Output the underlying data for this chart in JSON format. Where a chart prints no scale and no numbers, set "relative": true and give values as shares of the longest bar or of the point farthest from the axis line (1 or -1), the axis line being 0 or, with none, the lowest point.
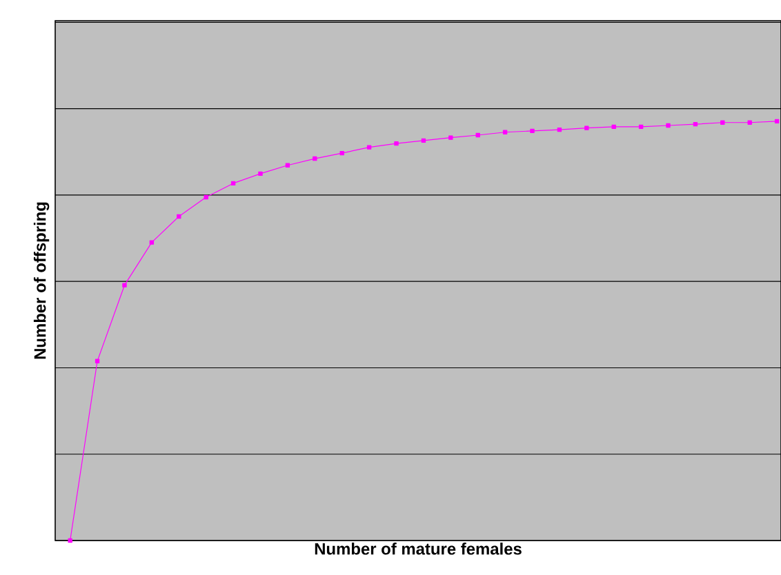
{
  "chart_data": {
    "type": "line",
    "xlabel": "Number of mature females",
    "ylabel": "Number of offspring",
    "relative": true,
    "grid": "y",
    "marker": "square",
    "line_style": "solid",
    "categories": [
      null,
      null,
      null,
      null,
      null,
      null,
      null,
      null,
      null,
      null,
      null,
      null,
      null,
      null,
      null,
      null,
      null,
      null,
      null,
      null,
      null,
      null,
      null,
      null,
      null,
      null,
      null
    ],
    "series": [
      {
        "color": "#ff00ff",
        "values": [
          0,
          0.428,
          0.609,
          0.711,
          0.773,
          0.819,
          0.852,
          0.875,
          0.895,
          0.911,
          0.924,
          0.938,
          0.947,
          0.954,
          0.961,
          0.967,
          0.974,
          0.977,
          0.98,
          0.984,
          0.987,
          0.987,
          0.99,
          0.993,
          0.997,
          0.997,
          1
        ]
      }
    ]
  }
}
